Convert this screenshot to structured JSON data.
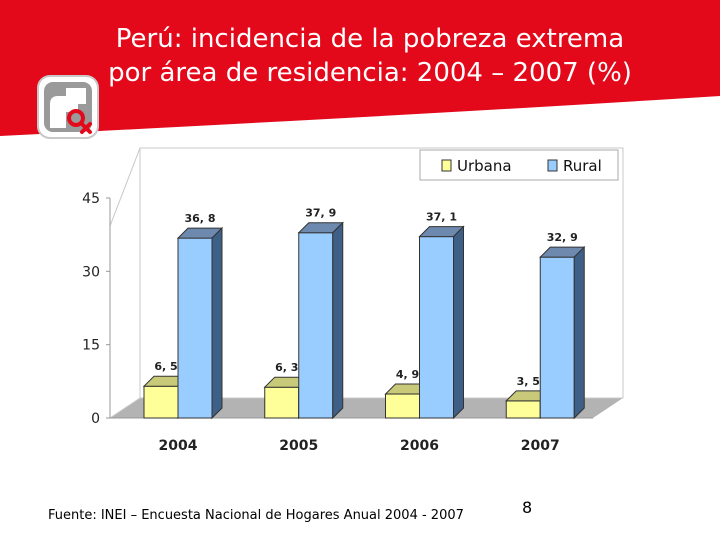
{
  "title_lines": [
    "Perú: incidencia de la pobreza extrema",
    "por área de residencia: 2004 – 2007 (%)"
  ],
  "source": "Fuente: INEI – Encuesta Nacional de Hogares Anual 2004 - 2007",
  "page_number": "8",
  "colors": {
    "banner": "#e3091b",
    "urbana": "#ffff99",
    "rural": "#99ccff"
  },
  "logo_icon": "inei-logo-icon",
  "chart_data": {
    "type": "bar",
    "categories": [
      "2004",
      "2005",
      "2006",
      "2007"
    ],
    "series": [
      {
        "name": "Urbana",
        "values": [
          6.5,
          6.3,
          4.9,
          3.5
        ],
        "labels": [
          "6, 5",
          "6, 3",
          "4, 9",
          "3, 5"
        ]
      },
      {
        "name": "Rural",
        "values": [
          36.8,
          37.9,
          37.1,
          32.9
        ],
        "labels": [
          "36, 8",
          "37, 9",
          "37, 1",
          "32, 9"
        ]
      }
    ],
    "yticks": [
      "0",
      "15",
      "30",
      "45"
    ],
    "ylim": [
      0,
      45
    ],
    "legend_position": "top",
    "grid": false
  }
}
